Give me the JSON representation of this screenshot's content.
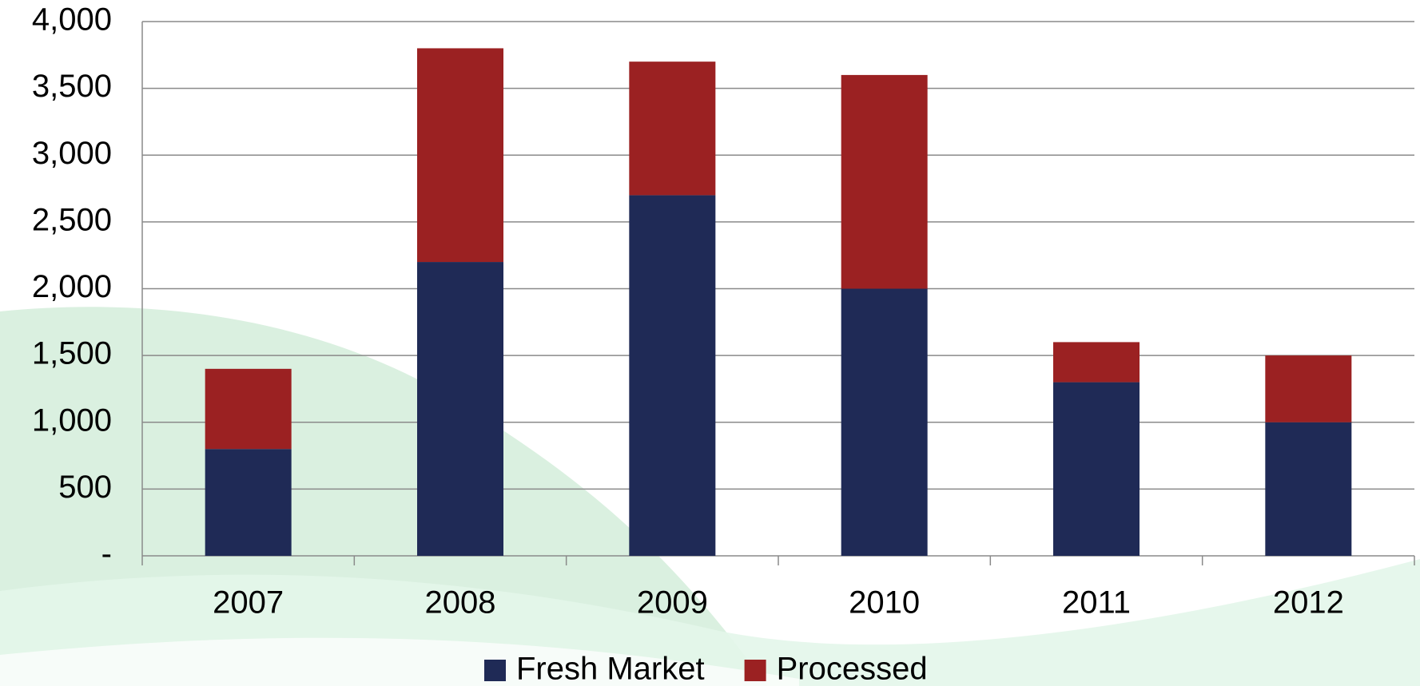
{
  "chart_data": {
    "type": "stacked_bar",
    "categories": [
      "2007",
      "2008",
      "2009",
      "2010",
      "2011",
      "2012"
    ],
    "series": [
      {
        "name": "Fresh Market",
        "color": "#1f2a56",
        "values": [
          800,
          2200,
          2700,
          2000,
          1300,
          1000
        ]
      },
      {
        "name": "Processed",
        "color": "#9b2122",
        "values": [
          600,
          1600,
          1000,
          1600,
          300,
          500
        ]
      }
    ],
    "ylim": [
      0,
      4000
    ],
    "yticks": [
      {
        "value": 0,
        "label": "-"
      },
      500,
      {
        "value": 1000,
        "label": "1,000"
      },
      {
        "value": 1500,
        "label": "1,500"
      },
      {
        "value": 2000,
        "label": "2,000"
      },
      {
        "value": 2500,
        "label": "2,500"
      },
      {
        "value": 3000,
        "label": "3,000"
      },
      {
        "value": 3500,
        "label": "3,500"
      },
      {
        "value": 4000,
        "label": "4,000"
      }
    ],
    "grid": true,
    "legend": "bottom"
  }
}
